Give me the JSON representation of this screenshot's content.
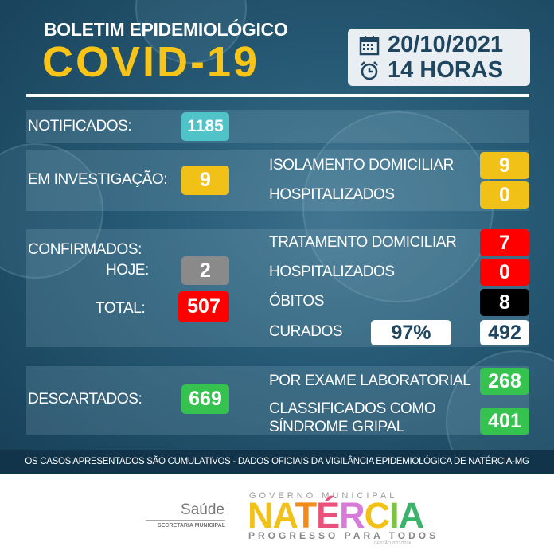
{
  "header": {
    "subtitle": "BOLETIM EPIDEMIOLÓGICO",
    "title": "COVID-19",
    "date": "20/10/2021",
    "time": "14 HORAS",
    "date_icon": "calendar-icon",
    "time_icon": "alarm-clock-icon"
  },
  "notificados": {
    "label": "NOTIFICADOS:",
    "value": "1185"
  },
  "investigacao": {
    "label": "EM INVESTIGAÇÃO:",
    "value": "9",
    "isolamento_label": "ISOLAMENTO DOMICILIAR",
    "isolamento_value": "9",
    "hosp_label": "HOSPITALIZADOS",
    "hosp_value": "0"
  },
  "confirmados": {
    "label": "CONFIRMADOS:",
    "hoje_label": "HOJE:",
    "hoje_value": "2",
    "total_label": "TOTAL:",
    "total_value": "507",
    "tratamento_label": "TRATAMENTO DOMICILIAR",
    "tratamento_value": "7",
    "hosp_label": "HOSPITALIZADOS",
    "hosp_value": "0",
    "obitos_label": "ÓBITOS",
    "obitos_value": "8",
    "curados_label": "CURADOS",
    "curados_pct": "97%",
    "curados_value": "492"
  },
  "descartados": {
    "label": "DESCARTADOS:",
    "value": "669",
    "exame_label": "POR EXAME LABORATORIAL",
    "exame_value": "268",
    "sindrome_label1": "CLASSIFICADOS COMO",
    "sindrome_label2": "SÍNDROME GRIPAL",
    "sindrome_value": "401"
  },
  "footer": {
    "note": "OS CASOS APRESENTADOS SÃO CUMULATIVOS - DADOS OFICIAIS DA VIGILÂNCIA EPIDEMIOLÓGICA DE NATÉRCIA-MG"
  },
  "logos": {
    "saude": "Saúde",
    "secretaria": "SECRETARIA MUNICIPAL",
    "governo": "GOVERNO MUNICIPAL",
    "city": "NATÉRCIA",
    "slogan": "PROGRESSO PARA TODOS",
    "gestao": "GESTÃO 2021/2024"
  },
  "colors": {
    "cyan": "#4fc3c8",
    "yellow": "#f2c118",
    "red": "#ff0000",
    "gray": "#8a8a8a",
    "black": "#000000",
    "green": "#35c24f",
    "navy": "#1f4660"
  }
}
